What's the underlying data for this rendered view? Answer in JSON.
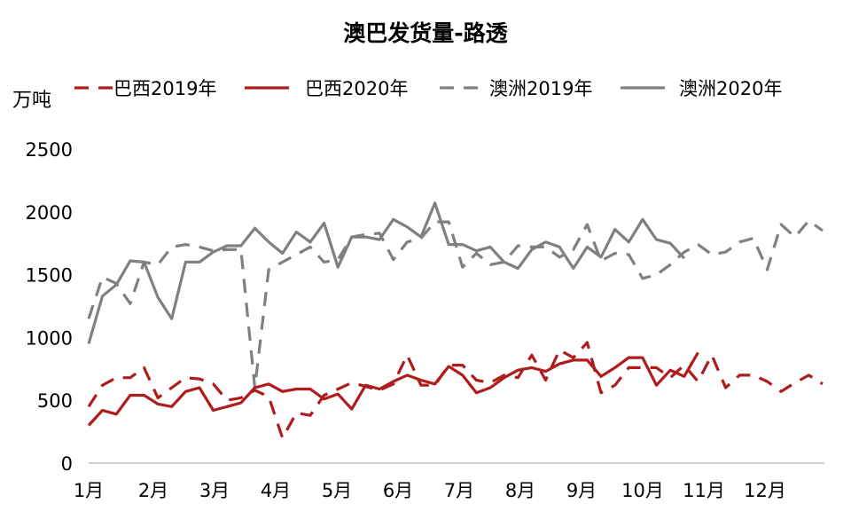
{
  "chart_data": {
    "type": "line",
    "title": "澳巴发货量-路透",
    "ylabel": "万吨",
    "xlabel": "",
    "ylim": [
      0,
      2500
    ],
    "yticks": [
      0,
      500,
      1000,
      1500,
      2000,
      2500
    ],
    "x_tick_labels": [
      "1月",
      "2月",
      "3月",
      "4月",
      "5月",
      "6月",
      "7月",
      "8月",
      "9月",
      "10月",
      "11月",
      "12月"
    ],
    "x_unit": "week",
    "grid": false,
    "legend_position": "top",
    "series": [
      {
        "name": "巴西2019年",
        "color": "#b01c1c",
        "dash": "dashed",
        "values": [
          450,
          620,
          680,
          680,
          760,
          520,
          600,
          680,
          670,
          630,
          500,
          520,
          580,
          530,
          200,
          400,
          380,
          540,
          590,
          640,
          610,
          580,
          630,
          860,
          620,
          620,
          780,
          780,
          660,
          640,
          700,
          680,
          860,
          660,
          900,
          840,
          960,
          560,
          620,
          760,
          760,
          760,
          680,
          780,
          650,
          860,
          600,
          700,
          700,
          650,
          570,
          640,
          700,
          630
        ]
      },
      {
        "name": "巴西2020年",
        "color": "#b01c1c",
        "dash": "solid",
        "values": [
          300,
          420,
          390,
          540,
          540,
          470,
          450,
          570,
          600,
          420,
          450,
          480,
          600,
          630,
          570,
          590,
          590,
          510,
          550,
          430,
          620,
          590,
          650,
          700,
          660,
          630,
          770,
          700,
          560,
          600,
          680,
          740,
          760,
          730,
          790,
          820,
          820,
          690,
          760,
          840,
          840,
          620,
          740,
          690,
          880
        ]
      },
      {
        "name": "澳洲2019年",
        "color": "#808080",
        "dash": "dashed",
        "values": [
          1150,
          1480,
          1430,
          1270,
          1600,
          1580,
          1720,
          1740,
          1720,
          1690,
          1700,
          1700,
          600,
          1540,
          1600,
          1660,
          1720,
          1600,
          1620,
          1800,
          1820,
          1830,
          1620,
          1760,
          1790,
          1920,
          1920,
          1560,
          1670,
          1580,
          1600,
          1730,
          1720,
          1720,
          1640,
          1700,
          1900,
          1610,
          1670,
          1660,
          1470,
          1500,
          1580,
          1680,
          1740,
          1660,
          1680,
          1760,
          1790,
          1540,
          1900,
          1800,
          1930,
          1850
        ]
      },
      {
        "name": "澳洲2020年",
        "color": "#808080",
        "dash": "solid",
        "values": [
          950,
          1330,
          1420,
          1610,
          1600,
          1320,
          1150,
          1600,
          1600,
          1680,
          1730,
          1730,
          1870,
          1760,
          1670,
          1840,
          1760,
          1910,
          1560,
          1800,
          1800,
          1780,
          1940,
          1880,
          1800,
          2070,
          1740,
          1740,
          1690,
          1720,
          1600,
          1550,
          1700,
          1760,
          1720,
          1550,
          1720,
          1640,
          1860,
          1760,
          1940,
          1780,
          1750,
          1630
        ]
      }
    ]
  }
}
